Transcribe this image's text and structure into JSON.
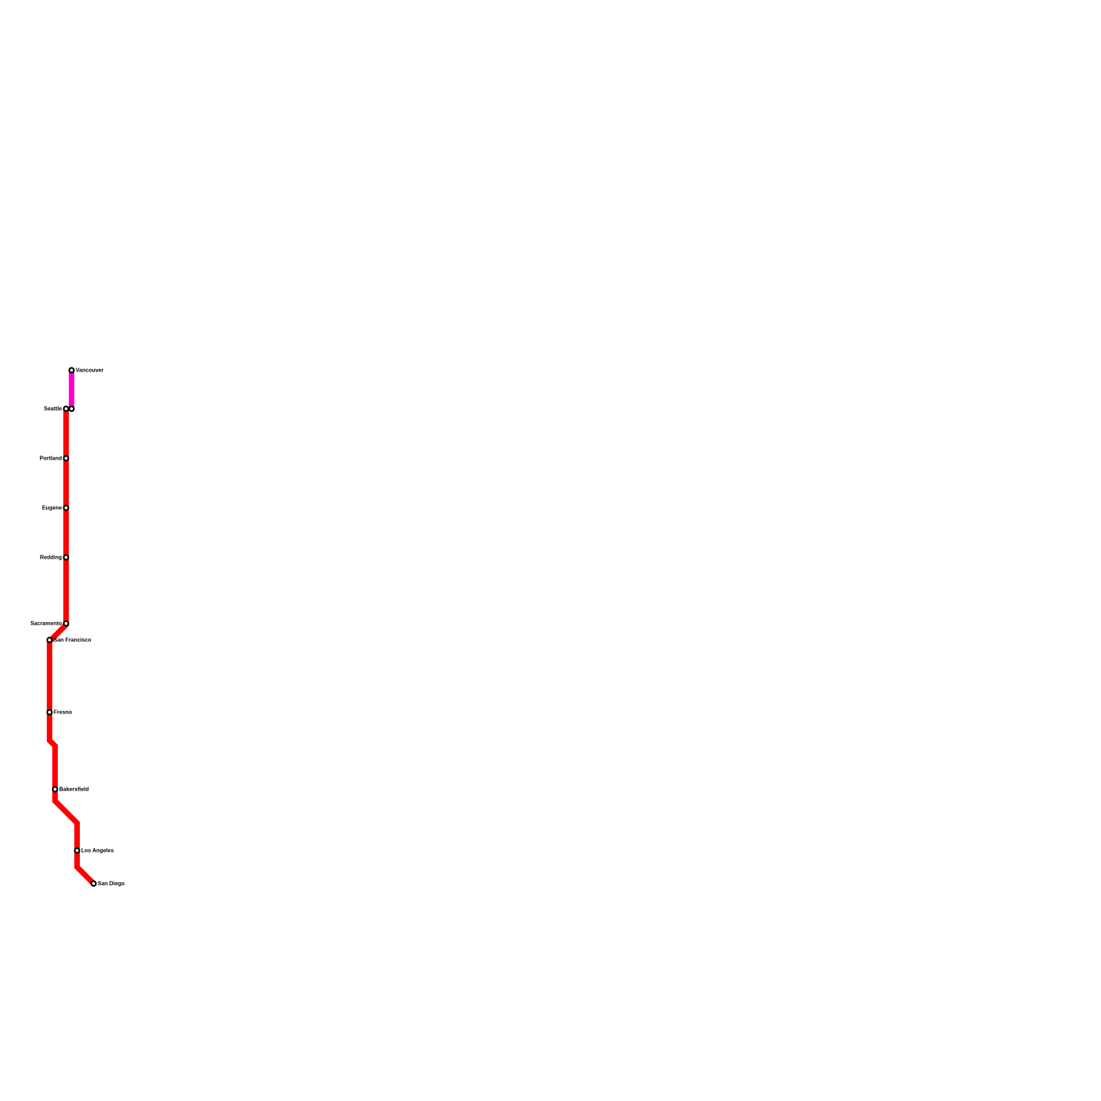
{
  "map": {
    "lines": [
      {
        "id": "line-red",
        "color": "#ff0000",
        "stations": [
          "Seattle",
          "Portland",
          "Eugene",
          "Redding",
          "Sacramento",
          "San Francisco",
          "Fresno",
          "Bakersfield",
          "Los Angeles",
          "San Diego"
        ]
      },
      {
        "id": "line-magenta",
        "color": "#ff00cc",
        "stations": [
          "Seattle",
          "Vancouver"
        ]
      }
    ],
    "stations": [
      {
        "id": "vancouver",
        "label": "Vancouver"
      },
      {
        "id": "seattle",
        "label": "Seattle"
      },
      {
        "id": "seattle-magenta",
        "label": ""
      },
      {
        "id": "portland",
        "label": "Portland"
      },
      {
        "id": "eugene",
        "label": "Eugene"
      },
      {
        "id": "redding",
        "label": "Redding"
      },
      {
        "id": "sacramento",
        "label": "Sacramento"
      },
      {
        "id": "san-francisco",
        "label": "San Francisco"
      },
      {
        "id": "fresno",
        "label": "Fresno"
      },
      {
        "id": "bakersfield",
        "label": "Bakersfield"
      },
      {
        "id": "los-angeles",
        "label": "Los Angeles"
      },
      {
        "id": "san-diego",
        "label": "San Diego"
      }
    ]
  }
}
